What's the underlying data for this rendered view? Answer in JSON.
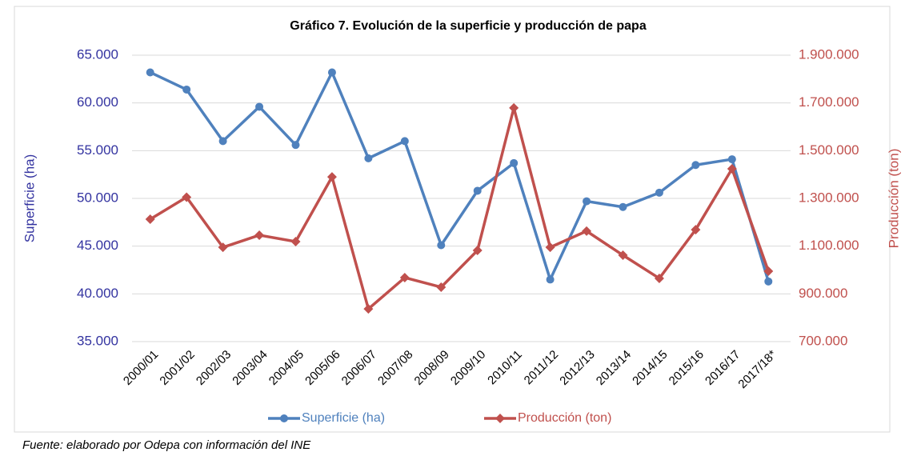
{
  "chart_data": {
    "type": "line",
    "title": "Gráfico 7. Evolución de la superficie y producción de papa",
    "categories": [
      "2000/01",
      "2001/02",
      "2002/03",
      "2003/04",
      "2004/05",
      "2005/06",
      "2006/07",
      "2007/08",
      "2008/09",
      "2009/10",
      "2010/11",
      "2011/12",
      "2012/13",
      "2013/14",
      "2014/15",
      "2015/16",
      "2016/17",
      "2017/18*"
    ],
    "series": [
      {
        "name": "Superficie (ha)",
        "color": "#4f81bd",
        "axis": "y",
        "values": [
          63200,
          61400,
          56000,
          59600,
          55600,
          63200,
          54200,
          56000,
          45100,
          50800,
          53700,
          41500,
          49700,
          49100,
          50600,
          53500,
          54100,
          41300
        ]
      },
      {
        "name": "Producción (ton)",
        "color": "#c0504d",
        "axis": "y2",
        "values": [
          1213000,
          1305000,
          1095000,
          1146000,
          1119000,
          1390000,
          837000,
          968000,
          928000,
          1082000,
          1679000,
          1095000,
          1163000,
          1062000,
          965000,
          1169000,
          1424000,
          995000
        ]
      }
    ],
    "ylabel": "Superficie (ha)",
    "y2label": "Producción (ton)",
    "ylim": [
      35000,
      65000
    ],
    "yticks": [
      {
        "value": 35000,
        "label": "35.000"
      },
      {
        "value": 40000,
        "label": "40.000"
      },
      {
        "value": 45000,
        "label": "45.000"
      },
      {
        "value": 50000,
        "label": "50.000"
      },
      {
        "value": 55000,
        "label": "55.000"
      },
      {
        "value": 60000,
        "label": "60.000"
      },
      {
        "value": 65000,
        "label": "65.000"
      }
    ],
    "y2lim": [
      700000,
      1900000
    ],
    "y2ticks": [
      {
        "value": 700000,
        "label": "700.000"
      },
      {
        "value": 900000,
        "label": "900.000"
      },
      {
        "value": 1100000,
        "label": "1.100.000"
      },
      {
        "value": 1300000,
        "label": "1.300.000"
      },
      {
        "value": 1500000,
        "label": "1.500.000"
      },
      {
        "value": 1700000,
        "label": "1.700.000"
      },
      {
        "value": 1900000,
        "label": "1.900.000"
      }
    ],
    "grid": true,
    "legend": "bottom",
    "source": "Fuente: elaborado por Odepa con información del INE"
  }
}
